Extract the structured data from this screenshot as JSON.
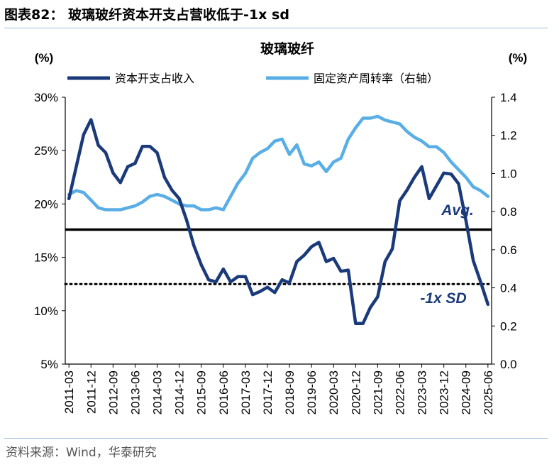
{
  "header": {
    "figure_title": "图表82：  玻璃玻纤资本开支占营收低于-1x sd"
  },
  "footer": {
    "source": "资料来源：Wind，华泰研究"
  },
  "colors": {
    "capex_line": "#1b3a7a",
    "fixed_asset_line": "#5aaee6",
    "avg_line": "#000000",
    "sd_line": "#000000",
    "annotation_text": "#1b3a7a",
    "rule": "#9dbbd8"
  },
  "chart_data": {
    "type": "line",
    "title": "玻璃玻纤",
    "left_axis_unit": "(%)",
    "right_axis_unit": "(%)",
    "left_axis": {
      "min": 5,
      "max": 30,
      "ticks": [
        "5%",
        "10%",
        "15%",
        "20%",
        "25%",
        "30%"
      ],
      "tick_values": [
        5,
        10,
        15,
        20,
        25,
        30
      ]
    },
    "right_axis": {
      "min": 0,
      "max": 1.4,
      "ticks": [
        "0.0",
        "0.2",
        "0.4",
        "0.6",
        "0.8",
        "1.0",
        "1.2",
        "1.4"
      ],
      "tick_values": [
        0,
        0.2,
        0.4,
        0.6,
        0.8,
        1.0,
        1.2,
        1.4
      ]
    },
    "x_tick_labels": [
      "2011-03",
      "2011-12",
      "2012-09",
      "2013-06",
      "2014-03",
      "2014-12",
      "2015-09",
      "2016-06",
      "2017-03",
      "2017-12",
      "2018-09",
      "2019-06",
      "2020-03",
      "2020-12",
      "2021-09",
      "2022-06",
      "2023-03",
      "2023-12",
      "2024-09",
      "2025-06"
    ],
    "x_start": "2011-03",
    "x_end": "2025-06",
    "legend": [
      "资本开支占收入",
      "固定资产周转率（右轴）"
    ],
    "series": [
      {
        "name": "资本开支占收入",
        "axis": "left",
        "values": [
          20.5,
          23.5,
          26.5,
          27.9,
          25.5,
          24.8,
          22.9,
          22.0,
          23.5,
          23.8,
          25.4,
          25.4,
          24.8,
          22.5,
          21.3,
          20.5,
          18.5,
          16.1,
          14.3,
          12.9,
          12.7,
          13.9,
          12.7,
          13.2,
          13.2,
          11.5,
          11.8,
          12.2,
          11.7,
          12.9,
          12.6,
          14.6,
          15.2,
          16.0,
          16.4,
          14.6,
          14.9,
          13.7,
          13.8,
          8.8,
          8.8,
          10.3,
          11.3,
          14.6,
          15.8,
          20.3,
          21.3,
          22.5,
          23.5,
          20.5,
          21.7,
          22.9,
          22.8,
          21.9,
          18.5,
          14.7,
          12.7,
          10.6
        ]
      },
      {
        "name": "固定资产周转率（右轴）",
        "axis": "right",
        "values": [
          0.89,
          0.91,
          0.9,
          0.86,
          0.82,
          0.81,
          0.81,
          0.81,
          0.82,
          0.83,
          0.85,
          0.88,
          0.89,
          0.88,
          0.86,
          0.84,
          0.83,
          0.83,
          0.81,
          0.81,
          0.82,
          0.81,
          0.88,
          0.95,
          1.0,
          1.08,
          1.11,
          1.13,
          1.17,
          1.18,
          1.1,
          1.15,
          1.05,
          1.04,
          1.06,
          1.01,
          1.06,
          1.08,
          1.18,
          1.24,
          1.29,
          1.29,
          1.3,
          1.28,
          1.27,
          1.26,
          1.22,
          1.19,
          1.17,
          1.14,
          1.14,
          1.11,
          1.06,
          1.02,
          0.98,
          0.93,
          0.91,
          0.88
        ]
      }
    ],
    "reference_lines": [
      {
        "name": "avg",
        "label": "Avg.",
        "axis": "left",
        "value": 17.6,
        "style": "solid"
      },
      {
        "name": "minus-1-sd",
        "label": "-1x SD",
        "axis": "left",
        "value": 12.5,
        "style": "dotted"
      }
    ]
  }
}
